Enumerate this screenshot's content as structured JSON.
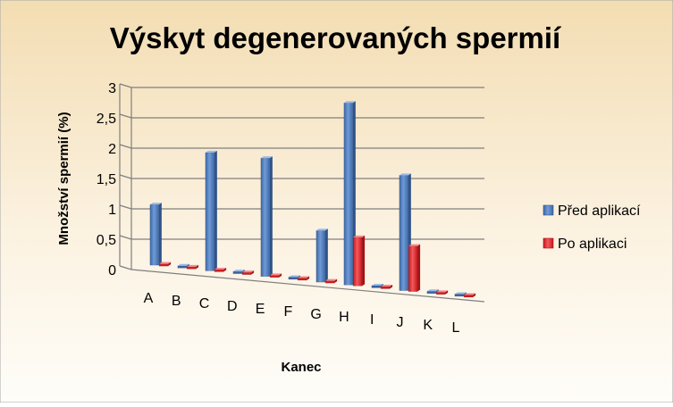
{
  "chart_data": {
    "type": "bar",
    "title": "Výskyt degenerovaných spermií",
    "xlabel": "Kanec",
    "ylabel": "Množství spermií (%)",
    "categories": [
      "A",
      "B",
      "C",
      "D",
      "E",
      "F",
      "G",
      "H",
      "I",
      "J",
      "K",
      "L"
    ],
    "series": [
      {
        "name": "Před aplikací",
        "values": [
          1.0,
          0.0,
          1.95,
          0.0,
          1.95,
          0.0,
          0.85,
          3.0,
          0.0,
          1.9,
          0.0,
          0.0
        ]
      },
      {
        "name": "Po aplikaci",
        "values": [
          0.0,
          0.0,
          0.0,
          0.0,
          0.0,
          0.0,
          0.0,
          0.8,
          0.0,
          0.75,
          0.0,
          0.0
        ]
      }
    ],
    "ylim": [
      0,
      3
    ],
    "yticks": [
      "0",
      "0,5",
      "1",
      "1,5",
      "2",
      "2,5",
      "3"
    ],
    "legend_position": "right",
    "grid": true,
    "colors": {
      "series": [
        "#4f81bd",
        "#e8272a"
      ],
      "background_top": "#f6e6c8",
      "background_bottom": "#fffdf8",
      "gridline": "#7f7f7f"
    }
  }
}
